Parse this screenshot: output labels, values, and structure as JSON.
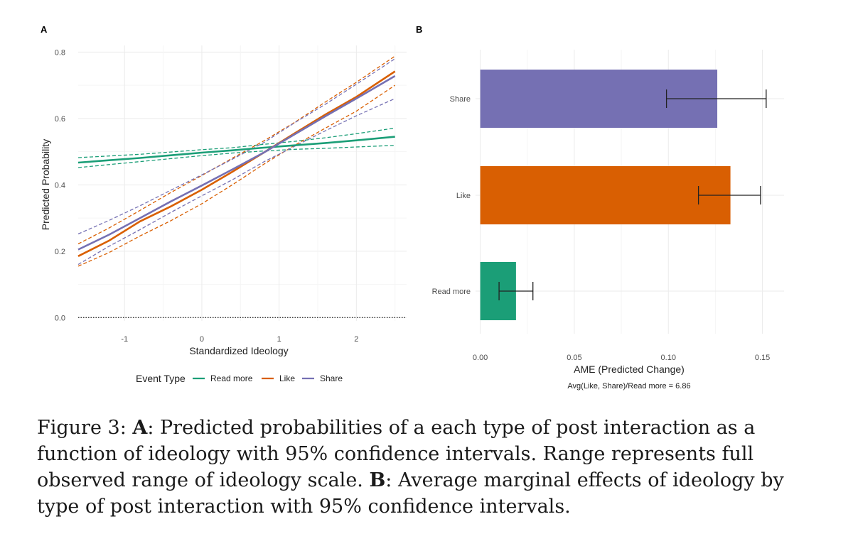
{
  "chart_data": [
    {
      "panel_label": "A",
      "type": "line",
      "xlabel": "Standardized Ideology",
      "ylabel": "Predicted Probability",
      "xlim": [
        -1.6,
        2.65
      ],
      "ylim": [
        -0.01,
        0.82
      ],
      "x_ticks": [
        "-1",
        "0",
        "1",
        "2"
      ],
      "y_ticks": [
        "0.0",
        "0.2",
        "0.4",
        "0.6",
        "0.8"
      ],
      "hline": 0.0,
      "grid": true,
      "legend": {
        "title": "Event Type",
        "position": "bottom",
        "entries": [
          "Read more",
          "Like",
          "Share"
        ]
      },
      "x": [
        -1.6,
        -1.2,
        -0.8,
        -0.4,
        0.0,
        0.4,
        0.8,
        1.2,
        1.6,
        2.0,
        2.5
      ],
      "series": [
        {
          "name": "Read more",
          "color": "#1b9e77",
          "values": [
            0.467,
            0.474,
            0.481,
            0.489,
            0.497,
            0.504,
            0.512,
            0.519,
            0.526,
            0.534,
            0.545
          ],
          "lower": [
            0.452,
            0.461,
            0.47,
            0.479,
            0.488,
            0.496,
            0.502,
            0.507,
            0.51,
            0.514,
            0.519
          ],
          "upper": [
            0.482,
            0.487,
            0.492,
            0.499,
            0.506,
            0.512,
            0.522,
            0.531,
            0.542,
            0.554,
            0.571
          ]
        },
        {
          "name": "Like",
          "color": "#d95f02",
          "values": [
            0.185,
            0.232,
            0.29,
            0.335,
            0.385,
            0.44,
            0.497,
            0.555,
            0.612,
            0.665,
            0.742
          ],
          "lower": [
            0.155,
            0.196,
            0.246,
            0.292,
            0.343,
            0.401,
            0.462,
            0.519,
            0.571,
            0.622,
            0.7
          ],
          "upper": [
            0.222,
            0.27,
            0.323,
            0.377,
            0.428,
            0.481,
            0.532,
            0.588,
            0.65,
            0.709,
            0.788
          ]
        },
        {
          "name": "Share",
          "color": "#7570b3",
          "values": [
            0.205,
            0.25,
            0.3,
            0.35,
            0.398,
            0.447,
            0.497,
            0.552,
            0.607,
            0.66,
            0.728
          ],
          "lower": [
            0.16,
            0.215,
            0.265,
            0.317,
            0.367,
            0.416,
            0.469,
            0.516,
            0.563,
            0.608,
            0.66
          ],
          "upper": [
            0.252,
            0.293,
            0.337,
            0.384,
            0.43,
            0.478,
            0.527,
            0.587,
            0.643,
            0.703,
            0.78
          ]
        }
      ]
    },
    {
      "panel_label": "B",
      "type": "bar",
      "orientation": "horizontal",
      "xlabel": "AME (Predicted Change)",
      "annotation": "Avg(Like, Share)/Read more = 6.86",
      "xlim": [
        -0.0025,
        0.1615
      ],
      "x_ticks": [
        "0.00",
        "0.05",
        "0.10",
        "0.15"
      ],
      "grid": true,
      "categories": [
        "Share",
        "Like",
        "Read more"
      ],
      "values": [
        0.126,
        0.133,
        0.019
      ],
      "ci_low": [
        0.099,
        0.116,
        0.01
      ],
      "ci_high": [
        0.152,
        0.149,
        0.028
      ],
      "colors": [
        "#7570b3",
        "#d95f02",
        "#1b9e77"
      ]
    }
  ],
  "caption": {
    "fig_label": "Figure 3: ",
    "a_label": "A",
    "a_text": ": Predicted probabilities of a each type of post interaction as a function of ideology with 95% confidence intervals. Range represents full observed range of ideology scale. ",
    "b_label": "B",
    "b_text": ": Average marginal effects of ideology by type of post interaction with 95% confidence intervals."
  }
}
